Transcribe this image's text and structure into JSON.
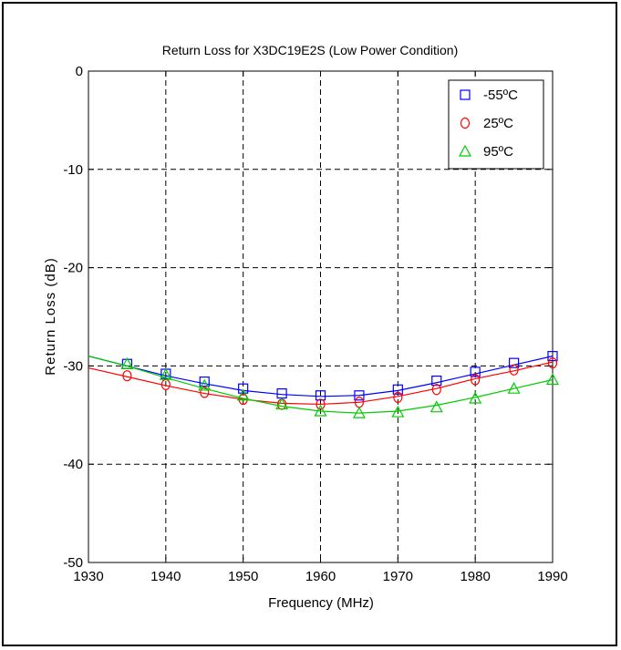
{
  "chart_data": {
    "type": "line",
    "title": "Return Loss for X3DC19E2S (Low Power Condition)",
    "xlabel": "Frequency (MHz)",
    "ylabel": "Return Loss (dB)",
    "xlim": [
      1930,
      1990
    ],
    "ylim": [
      -50,
      0
    ],
    "xticks": [
      1930,
      1940,
      1950,
      1960,
      1970,
      1980,
      1990
    ],
    "yticks": [
      0,
      -10,
      -20,
      -30,
      -40,
      -50
    ],
    "grid": true,
    "legend_position": "top-right",
    "series": [
      {
        "name": "-55ºC",
        "color": "#0000ff",
        "marker": "square",
        "x": [
          1935,
          1940,
          1945,
          1950,
          1955,
          1960,
          1965,
          1970,
          1975,
          1980,
          1985,
          1990
        ],
        "y": [
          -29.8,
          -30.8,
          -31.6,
          -32.3,
          -32.8,
          -33.0,
          -33.0,
          -32.4,
          -31.5,
          -30.6,
          -29.7,
          -29.0
        ],
        "line_x": [
          1930,
          1935,
          1940,
          1945,
          1950,
          1955,
          1960,
          1965,
          1970,
          1975,
          1980,
          1985,
          1990
        ],
        "line_y": [
          -29.0,
          -30.0,
          -31.0,
          -31.8,
          -32.5,
          -32.9,
          -33.1,
          -33.0,
          -32.5,
          -31.7,
          -30.8,
          -29.9,
          -29.0
        ]
      },
      {
        "name": "25ºC",
        "color": "#ff0000",
        "marker": "circle",
        "x": [
          1935,
          1940,
          1945,
          1950,
          1955,
          1960,
          1965,
          1970,
          1975,
          1980,
          1985,
          1990
        ],
        "y": [
          -31.0,
          -31.9,
          -32.7,
          -33.4,
          -33.9,
          -33.9,
          -33.7,
          -33.2,
          -32.4,
          -31.4,
          -30.4,
          -29.7
        ],
        "line_x": [
          1930,
          1935,
          1940,
          1945,
          1950,
          1955,
          1960,
          1965,
          1970,
          1975,
          1980,
          1985,
          1990
        ],
        "line_y": [
          -30.2,
          -31.1,
          -32.0,
          -32.8,
          -33.4,
          -33.8,
          -33.9,
          -33.7,
          -33.1,
          -32.3,
          -31.3,
          -30.5,
          -29.6
        ]
      },
      {
        "name": "95ºC",
        "color": "#00cc00",
        "marker": "triangle",
        "x": [
          1935,
          1940,
          1945,
          1950,
          1955,
          1960,
          1965,
          1970,
          1975,
          1980,
          1985,
          1990
        ],
        "y": [
          -29.8,
          -30.9,
          -32.0,
          -33.0,
          -33.9,
          -34.6,
          -34.8,
          -34.7,
          -34.2,
          -33.3,
          -32.3,
          -31.4
        ],
        "line_x": [
          1930,
          1935,
          1940,
          1945,
          1950,
          1955,
          1960,
          1965,
          1970,
          1975,
          1980,
          1985,
          1990
        ],
        "line_y": [
          -29.0,
          -30.0,
          -31.2,
          -32.3,
          -33.3,
          -34.1,
          -34.6,
          -34.8,
          -34.6,
          -34.0,
          -33.2,
          -32.3,
          -31.4
        ]
      }
    ]
  }
}
